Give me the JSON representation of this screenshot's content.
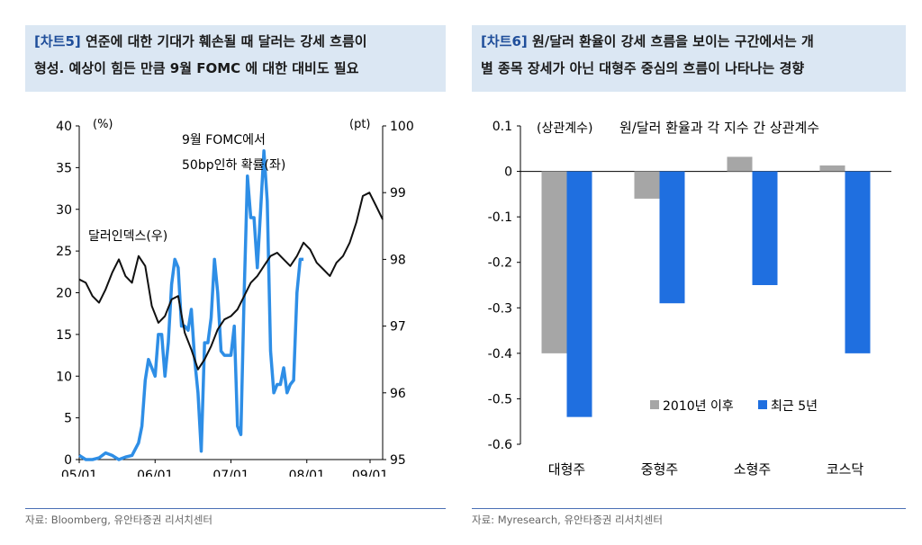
{
  "left": {
    "tag": "[차트5]",
    "title_line1": "연준에 대한 기대가 훼손될 때 달러는 강세 흐름이",
    "title_line2": "형성. 예상이 힘든 만큼 9월 FOMC 에 대한 대비도 필요",
    "source": "자료: Bloomberg, 유안타증권 리서치센터",
    "chart_data": {
      "type": "line",
      "x_tick_labels": [
        "05/01",
        "06/01",
        "07/01",
        "08/01",
        "09/01"
      ],
      "left_unit": "(%)",
      "right_unit": "(pt)",
      "ylim_left": [
        0,
        40
      ],
      "ylim_right": [
        95,
        100
      ],
      "left_ticks": [
        "0",
        "5",
        "10",
        "15",
        "20",
        "25",
        "30",
        "35",
        "40"
      ],
      "right_ticks": [
        "95",
        "96",
        "97",
        "98",
        "99",
        "100"
      ],
      "annotation_prob_1": "9월 FOMC에서",
      "annotation_prob_2": "50bp인하 확률(좌)",
      "annotation_dollar": "달러인덱스(우)",
      "series": [
        {
          "name": "50bp인하 확률(좌)",
          "axis": "left",
          "color": "#2e8ee6",
          "points": [
            [
              0,
              0.5
            ],
            [
              2,
              0
            ],
            [
              4,
              0
            ],
            [
              6,
              0.2
            ],
            [
              8,
              0.8
            ],
            [
              10,
              0.5
            ],
            [
              12,
              0
            ],
            [
              14,
              0.3
            ],
            [
              16,
              0.5
            ],
            [
              18,
              2
            ],
            [
              19,
              4
            ],
            [
              20,
              9.5
            ],
            [
              21,
              12
            ],
            [
              22,
              11
            ],
            [
              23,
              10
            ],
            [
              24,
              15
            ],
            [
              25,
              15
            ],
            [
              26,
              10
            ],
            [
              27,
              14
            ],
            [
              28,
              21
            ],
            [
              29,
              24
            ],
            [
              30,
              23
            ],
            [
              31,
              16
            ],
            [
              32,
              16
            ],
            [
              33,
              15.5
            ],
            [
              34,
              18
            ],
            [
              35,
              12
            ],
            [
              36,
              8
            ],
            [
              37,
              1
            ],
            [
              38,
              14
            ],
            [
              39,
              14
            ],
            [
              40,
              17
            ],
            [
              41,
              24
            ],
            [
              42,
              20
            ],
            [
              43,
              13
            ],
            [
              44,
              12.5
            ],
            [
              45,
              12.5
            ],
            [
              46,
              12.5
            ],
            [
              47,
              16
            ],
            [
              48,
              4
            ],
            [
              49,
              3
            ],
            [
              50,
              20
            ],
            [
              51,
              34
            ],
            [
              52,
              29
            ],
            [
              53,
              29
            ],
            [
              54,
              23
            ],
            [
              55,
              30
            ],
            [
              56,
              37
            ],
            [
              57,
              31
            ],
            [
              58,
              13
            ],
            [
              59,
              8
            ],
            [
              60,
              9
            ],
            [
              61,
              9
            ],
            [
              62,
              11
            ],
            [
              63,
              8
            ],
            [
              64,
              9
            ],
            [
              65,
              9.5
            ],
            [
              66,
              20
            ],
            [
              67,
              24
            ],
            [
              68,
              24
            ]
          ]
        },
        {
          "name": "달러인덱스(우)",
          "axis": "right",
          "color": "#111111",
          "points": [
            [
              0,
              97.7
            ],
            [
              2,
              97.65
            ],
            [
              4,
              97.45
            ],
            [
              6,
              97.35
            ],
            [
              8,
              97.55
            ],
            [
              10,
              97.8
            ],
            [
              12,
              98.0
            ],
            [
              14,
              97.75
            ],
            [
              16,
              97.65
            ],
            [
              18,
              98.05
            ],
            [
              20,
              97.9
            ],
            [
              22,
              97.3
            ],
            [
              24,
              97.05
            ],
            [
              26,
              97.15
            ],
            [
              28,
              97.4
            ],
            [
              30,
              97.45
            ],
            [
              32,
              96.9
            ],
            [
              34,
              96.65
            ],
            [
              36,
              96.35
            ],
            [
              38,
              96.5
            ],
            [
              40,
              96.7
            ],
            [
              42,
              96.95
            ],
            [
              44,
              97.1
            ],
            [
              46,
              97.15
            ],
            [
              48,
              97.25
            ],
            [
              50,
              97.45
            ],
            [
              52,
              97.65
            ],
            [
              54,
              97.75
            ],
            [
              56,
              97.9
            ],
            [
              58,
              98.05
            ],
            [
              60,
              98.1
            ],
            [
              62,
              98.0
            ],
            [
              64,
              97.9
            ],
            [
              66,
              98.05
            ],
            [
              68,
              98.25
            ],
            [
              70,
              98.15
            ],
            [
              72,
              97.95
            ],
            [
              74,
              97.85
            ],
            [
              76,
              97.75
            ],
            [
              78,
              97.95
            ],
            [
              80,
              98.05
            ],
            [
              82,
              98.25
            ],
            [
              84,
              98.55
            ],
            [
              86,
              98.95
            ],
            [
              88,
              99.0
            ],
            [
              90,
              98.8
            ],
            [
              92,
              98.6
            ]
          ]
        }
      ]
    }
  },
  "right": {
    "tag": "[차트6]",
    "title_line1": "원/달러 환율이 강세 흐름을 보이는 구간에서는 개",
    "title_line2": "별 종목 장세가 아닌 대형주 중심의 흐름이 나타나는 경향",
    "source": "자료: Myresearch, 유안타증권 리서치센터",
    "chart_data": {
      "type": "bar",
      "title": "원/달러 환율과 각 지수 간 상관계수",
      "unit_label": "(상관계수)",
      "ylim": [
        -0.6,
        0.1
      ],
      "y_ticks": [
        "0.1",
        "0",
        "-0.1",
        "-0.2",
        "-0.3",
        "-0.4",
        "-0.5",
        "-0.6"
      ],
      "categories": [
        "대형주",
        "중형주",
        "소형주",
        "코스닥"
      ],
      "series": [
        {
          "name": "2010년 이후",
          "color": "#a6a6a6",
          "values": [
            -0.4,
            -0.06,
            0.032,
            0.013
          ]
        },
        {
          "name": "최근 5년",
          "color": "#1f6fe0",
          "values": [
            -0.54,
            -0.29,
            -0.25,
            -0.4
          ]
        }
      ],
      "legend_position": "bottom-right"
    }
  }
}
